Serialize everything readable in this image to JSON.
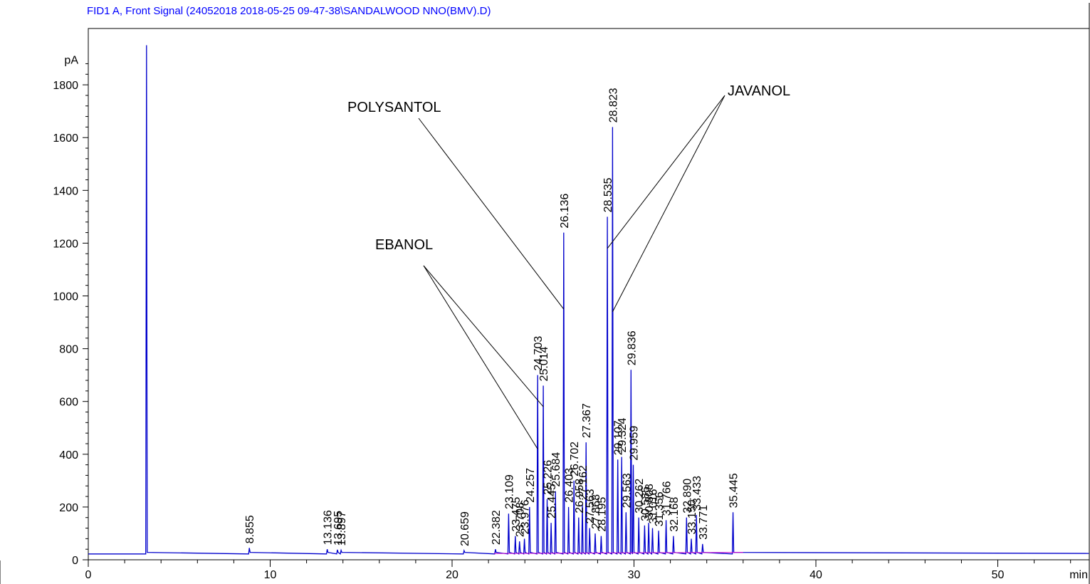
{
  "chart_data": {
    "type": "line",
    "title": "FID1 A, Front Signal (24052018 2018-05-25 09-47-38\\SANDALWOOD NNO(BMV).D)",
    "ylabel": "pA",
    "xlabel": "min",
    "xlim": [
      0,
      55
    ],
    "ylim": [
      0,
      1950
    ],
    "x_ticks": [
      0,
      10,
      20,
      30,
      40,
      50
    ],
    "y_ticks": [
      0,
      200,
      400,
      600,
      800,
      1000,
      1200,
      1400,
      1600,
      1800
    ],
    "baseline": 22,
    "colors": {
      "signal": "#0000cc",
      "baseline_marks": "#cc00cc",
      "text": "#000000",
      "title": "#0000ff"
    },
    "peaks": [
      {
        "x": 3.2,
        "y": 1950,
        "label": ""
      },
      {
        "x": 8.855,
        "y": 45,
        "label": "8.855"
      },
      {
        "x": 13.136,
        "y": 40,
        "label": "13.136"
      },
      {
        "x": 13.695,
        "y": 38,
        "label": "13.695"
      },
      {
        "x": 13.897,
        "y": 36,
        "label": "13.897"
      },
      {
        "x": 20.659,
        "y": 35,
        "label": "20.659"
      },
      {
        "x": 22.382,
        "y": 40,
        "label": "22.382"
      },
      {
        "x": 23.109,
        "y": 175,
        "label": "23.109"
      },
      {
        "x": 23.475,
        "y": 90,
        "label": "23.475"
      },
      {
        "x": 23.708,
        "y": 70,
        "label": "23.708"
      },
      {
        "x": 23.976,
        "y": 80,
        "label": "23.976"
      },
      {
        "x": 24.257,
        "y": 200,
        "label": "24.257"
      },
      {
        "x": 24.703,
        "y": 700,
        "label": "24.703"
      },
      {
        "x": 25.014,
        "y": 660,
        "label": "25.014"
      },
      {
        "x": 25.226,
        "y": 230,
        "label": "25.226"
      },
      {
        "x": 25.445,
        "y": 140,
        "label": "25.445"
      },
      {
        "x": 25.684,
        "y": 260,
        "label": "25.684"
      },
      {
        "x": 26.136,
        "y": 1240,
        "label": "26.136"
      },
      {
        "x": 26.403,
        "y": 200,
        "label": "26.403"
      },
      {
        "x": 26.702,
        "y": 300,
        "label": "26.702"
      },
      {
        "x": 26.958,
        "y": 160,
        "label": "26.958"
      },
      {
        "x": 27.162,
        "y": 210,
        "label": "27.162"
      },
      {
        "x": 27.367,
        "y": 445,
        "label": "27.367"
      },
      {
        "x": 27.563,
        "y": 120,
        "label": "27.563"
      },
      {
        "x": 27.868,
        "y": 100,
        "label": "27.868"
      },
      {
        "x": 28.195,
        "y": 90,
        "label": "28.195"
      },
      {
        "x": 28.535,
        "y": 1300,
        "label": "28.535"
      },
      {
        "x": 28.823,
        "y": 1640,
        "label": "28.823"
      },
      {
        "x": 29.107,
        "y": 380,
        "label": "29.107"
      },
      {
        "x": 29.324,
        "y": 390,
        "label": "29.324"
      },
      {
        "x": 29.563,
        "y": 180,
        "label": "29.563"
      },
      {
        "x": 29.836,
        "y": 720,
        "label": "29.836"
      },
      {
        "x": 29.959,
        "y": 360,
        "label": "29.959"
      },
      {
        "x": 30.262,
        "y": 160,
        "label": "30.262"
      },
      {
        "x": 30.585,
        "y": 130,
        "label": "30.585"
      },
      {
        "x": 30.808,
        "y": 140,
        "label": "30.808"
      },
      {
        "x": 31.016,
        "y": 120,
        "label": "31.016"
      },
      {
        "x": 31.356,
        "y": 110,
        "label": "31.356"
      },
      {
        "x": 31.766,
        "y": 150,
        "label": "31.766"
      },
      {
        "x": 32.168,
        "y": 90,
        "label": "32.168"
      },
      {
        "x": 32.89,
        "y": 160,
        "label": "32.890"
      },
      {
        "x": 33.15,
        "y": 80,
        "label": "33.150"
      },
      {
        "x": 33.433,
        "y": 170,
        "label": "33.433"
      },
      {
        "x": 33.771,
        "y": 60,
        "label": "33.771"
      },
      {
        "x": 35.445,
        "y": 180,
        "label": "35.445"
      }
    ],
    "annotations": [
      {
        "text": "POLYSANTOL",
        "targets": [
          [
            26.136,
            950
          ]
        ]
      },
      {
        "text": "EBANOL",
        "targets": [
          [
            24.703,
            420
          ],
          [
            25.014,
            580
          ]
        ]
      },
      {
        "text": "JAVANOL",
        "targets": [
          [
            28.535,
            1180
          ],
          [
            28.823,
            940
          ]
        ]
      }
    ]
  }
}
